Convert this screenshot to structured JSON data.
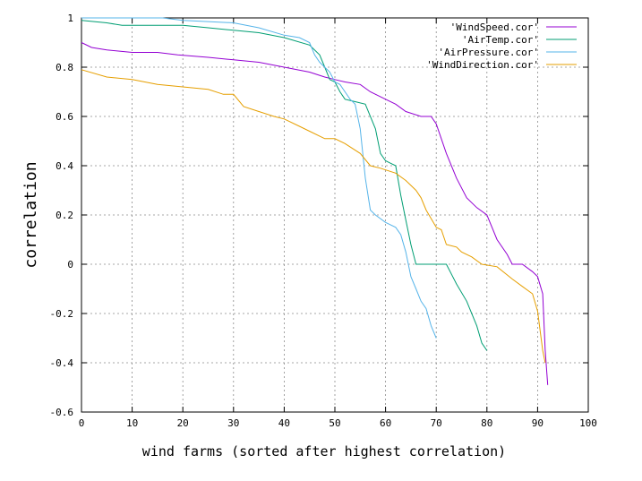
{
  "chart_data": {
    "type": "line",
    "xlabel": "wind farms (sorted after highest correlation)",
    "ylabel": "correlation",
    "xlim": [
      0,
      100
    ],
    "ylim": [
      -0.6,
      1
    ],
    "grid": true,
    "legend_position": "top-right",
    "x_ticks": [
      "0",
      "10",
      "20",
      "30",
      "40",
      "50",
      "60",
      "70",
      "80",
      "90",
      "100"
    ],
    "y_ticks": [
      "-0.6",
      "-0.4",
      "-0.2",
      "0",
      "0.2",
      "0.4",
      "0.6",
      "0.8",
      "1"
    ],
    "series": [
      {
        "name": "'WindSpeed.cor'",
        "color": "#9400d3",
        "points": [
          [
            0,
            0.9
          ],
          [
            2,
            0.88
          ],
          [
            5,
            0.87
          ],
          [
            10,
            0.86
          ],
          [
            15,
            0.86
          ],
          [
            19,
            0.85
          ],
          [
            25,
            0.84
          ],
          [
            30,
            0.83
          ],
          [
            35,
            0.82
          ],
          [
            40,
            0.8
          ],
          [
            45,
            0.78
          ],
          [
            48,
            0.76
          ],
          [
            50,
            0.75
          ],
          [
            52,
            0.74
          ],
          [
            55,
            0.73
          ],
          [
            57,
            0.7
          ],
          [
            60,
            0.67
          ],
          [
            62,
            0.65
          ],
          [
            64,
            0.62
          ],
          [
            67,
            0.6
          ],
          [
            69,
            0.6
          ],
          [
            70,
            0.57
          ],
          [
            72,
            0.45
          ],
          [
            74,
            0.35
          ],
          [
            76,
            0.27
          ],
          [
            78,
            0.23
          ],
          [
            80,
            0.2
          ],
          [
            82,
            0.1
          ],
          [
            84,
            0.04
          ],
          [
            85,
            0.0
          ],
          [
            87,
            0.0
          ],
          [
            89,
            -0.03
          ],
          [
            90,
            -0.05
          ],
          [
            91,
            -0.12
          ],
          [
            91.5,
            -0.35
          ],
          [
            92,
            -0.49
          ]
        ]
      },
      {
        "name": "'AirTemp.cor'",
        "color": "#009e73",
        "points": [
          [
            0,
            0.99
          ],
          [
            5,
            0.98
          ],
          [
            8,
            0.97
          ],
          [
            20,
            0.97
          ],
          [
            25,
            0.96
          ],
          [
            30,
            0.95
          ],
          [
            35,
            0.94
          ],
          [
            40,
            0.92
          ],
          [
            45,
            0.89
          ],
          [
            47,
            0.85
          ],
          [
            48,
            0.8
          ],
          [
            49,
            0.75
          ],
          [
            50,
            0.74
          ],
          [
            51,
            0.7
          ],
          [
            52,
            0.67
          ],
          [
            54,
            0.66
          ],
          [
            56,
            0.65
          ],
          [
            58,
            0.55
          ],
          [
            59,
            0.45
          ],
          [
            60,
            0.42
          ],
          [
            61,
            0.41
          ],
          [
            62,
            0.4
          ],
          [
            63,
            0.28
          ],
          [
            64,
            0.18
          ],
          [
            65,
            0.08
          ],
          [
            66,
            0.0
          ],
          [
            68,
            0.0
          ],
          [
            72,
            0.0
          ],
          [
            74,
            -0.08
          ],
          [
            76,
            -0.15
          ],
          [
            78,
            -0.25
          ],
          [
            79,
            -0.32
          ],
          [
            80,
            -0.35
          ]
        ]
      },
      {
        "name": "'AirPressure.cor'",
        "color": "#56b4e9",
        "points": [
          [
            0,
            1.0
          ],
          [
            16,
            1.0
          ],
          [
            20,
            0.99
          ],
          [
            30,
            0.98
          ],
          [
            35,
            0.96
          ],
          [
            40,
            0.93
          ],
          [
            43,
            0.92
          ],
          [
            45,
            0.9
          ],
          [
            46,
            0.85
          ],
          [
            47,
            0.82
          ],
          [
            48,
            0.8
          ],
          [
            49,
            0.78
          ],
          [
            50,
            0.74
          ],
          [
            51,
            0.73
          ],
          [
            52,
            0.7
          ],
          [
            53,
            0.67
          ],
          [
            54,
            0.65
          ],
          [
            55,
            0.55
          ],
          [
            56,
            0.35
          ],
          [
            57,
            0.22
          ],
          [
            58,
            0.2
          ],
          [
            60,
            0.17
          ],
          [
            62,
            0.15
          ],
          [
            63,
            0.12
          ],
          [
            64,
            0.05
          ],
          [
            65,
            -0.05
          ],
          [
            66,
            -0.1
          ],
          [
            67,
            -0.15
          ],
          [
            68,
            -0.18
          ],
          [
            69,
            -0.25
          ],
          [
            70,
            -0.3
          ]
        ]
      },
      {
        "name": "'WindDirection.cor'",
        "color": "#e69f00",
        "points": [
          [
            0,
            0.79
          ],
          [
            5,
            0.76
          ],
          [
            10,
            0.75
          ],
          [
            15,
            0.73
          ],
          [
            20,
            0.72
          ],
          [
            25,
            0.71
          ],
          [
            28,
            0.69
          ],
          [
            30,
            0.69
          ],
          [
            32,
            0.64
          ],
          [
            35,
            0.62
          ],
          [
            38,
            0.6
          ],
          [
            40,
            0.59
          ],
          [
            43,
            0.56
          ],
          [
            45,
            0.54
          ],
          [
            48,
            0.51
          ],
          [
            50,
            0.51
          ],
          [
            52,
            0.49
          ],
          [
            55,
            0.45
          ],
          [
            57,
            0.4
          ],
          [
            59,
            0.39
          ],
          [
            62,
            0.37
          ],
          [
            64,
            0.34
          ],
          [
            66,
            0.3
          ],
          [
            67,
            0.27
          ],
          [
            68,
            0.22
          ],
          [
            70,
            0.15
          ],
          [
            71,
            0.14
          ],
          [
            72,
            0.08
          ],
          [
            74,
            0.07
          ],
          [
            75,
            0.05
          ],
          [
            77,
            0.03
          ],
          [
            79,
            0.0
          ],
          [
            82,
            -0.01
          ],
          [
            85,
            -0.06
          ],
          [
            87,
            -0.09
          ],
          [
            89,
            -0.12
          ],
          [
            90,
            -0.19
          ],
          [
            91,
            -0.35
          ],
          [
            91.5,
            -0.4
          ]
        ]
      }
    ]
  }
}
